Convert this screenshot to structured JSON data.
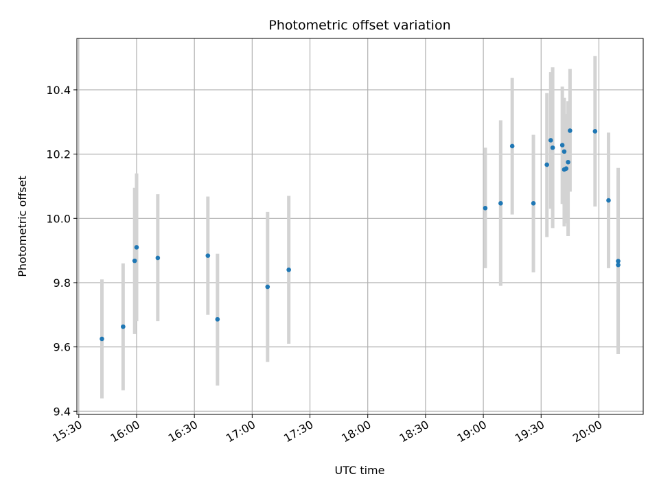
{
  "chart_data": {
    "type": "scatter",
    "title": "Photometric offset variation",
    "xlabel": "UTC time",
    "ylabel": "Photometric offset",
    "xlim": [
      "15:29",
      "20:23"
    ],
    "ylim": [
      9.39,
      10.56
    ],
    "grid": true,
    "x_ticks": [
      "15:30",
      "16:00",
      "16:30",
      "17:00",
      "17:30",
      "18:00",
      "18:30",
      "19:00",
      "19:30",
      "20:00"
    ],
    "y_ticks": [
      "9.4",
      "9.6",
      "9.8",
      "10.0",
      "10.2",
      "10.4"
    ],
    "colors": {
      "points": "#1f77b4",
      "error_bars": "#d3d3d3",
      "grid": "#b0b0b0",
      "axes": "#000000"
    },
    "series": [
      {
        "points": [
          {
            "x": "15:42",
            "y": 9.625,
            "lo": 9.44,
            "hi": 9.81
          },
          {
            "x": "15:53",
            "y": 9.663,
            "lo": 9.465,
            "hi": 9.86
          },
          {
            "x": "15:59",
            "y": 9.868,
            "lo": 9.64,
            "hi": 10.095
          },
          {
            "x": "16:00",
            "y": 9.91,
            "lo": 9.68,
            "hi": 10.14
          },
          {
            "x": "16:11",
            "y": 9.877,
            "lo": 9.68,
            "hi": 10.075
          },
          {
            "x": "16:37",
            "y": 9.884,
            "lo": 9.7,
            "hi": 10.068
          },
          {
            "x": "16:42",
            "y": 9.686,
            "lo": 9.48,
            "hi": 9.89
          },
          {
            "x": "17:08",
            "y": 9.787,
            "lo": 9.553,
            "hi": 10.02
          },
          {
            "x": "17:19",
            "y": 9.84,
            "lo": 9.61,
            "hi": 10.07
          },
          {
            "x": "19:01",
            "y": 10.032,
            "lo": 9.845,
            "hi": 10.22
          },
          {
            "x": "19:09",
            "y": 10.047,
            "lo": 9.79,
            "hi": 10.305
          },
          {
            "x": "19:15",
            "y": 10.225,
            "lo": 10.012,
            "hi": 10.437
          },
          {
            "x": "19:26",
            "y": 10.047,
            "lo": 9.832,
            "hi": 10.26
          },
          {
            "x": "19:33",
            "y": 10.167,
            "lo": 9.942,
            "hi": 10.39
          },
          {
            "x": "19:35",
            "y": 10.243,
            "lo": 10.03,
            "hi": 10.455
          },
          {
            "x": "19:36",
            "y": 10.22,
            "lo": 9.97,
            "hi": 10.47
          },
          {
            "x": "19:41",
            "y": 10.228,
            "lo": 10.045,
            "hi": 10.41
          },
          {
            "x": "19:42",
            "y": 10.208,
            "lo": 10.04,
            "hi": 10.375
          },
          {
            "x": "19:42",
            "y": 10.152,
            "lo": 9.975,
            "hi": 10.33
          },
          {
            "x": "19:43",
            "y": 10.155,
            "lo": 9.985,
            "hi": 10.325
          },
          {
            "x": "19:44",
            "y": 10.175,
            "lo": 9.945,
            "hi": 10.365
          },
          {
            "x": "19:45",
            "y": 10.273,
            "lo": 10.083,
            "hi": 10.465
          },
          {
            "x": "19:58",
            "y": 10.271,
            "lo": 10.037,
            "hi": 10.505
          },
          {
            "x": "20:05",
            "y": 10.056,
            "lo": 9.845,
            "hi": 10.267
          },
          {
            "x": "20:10",
            "y": 9.867,
            "lo": 9.578,
            "hi": 10.157
          },
          {
            "x": "20:10",
            "y": 9.855,
            "lo": 9.578,
            "hi": 10.133
          }
        ]
      }
    ]
  }
}
